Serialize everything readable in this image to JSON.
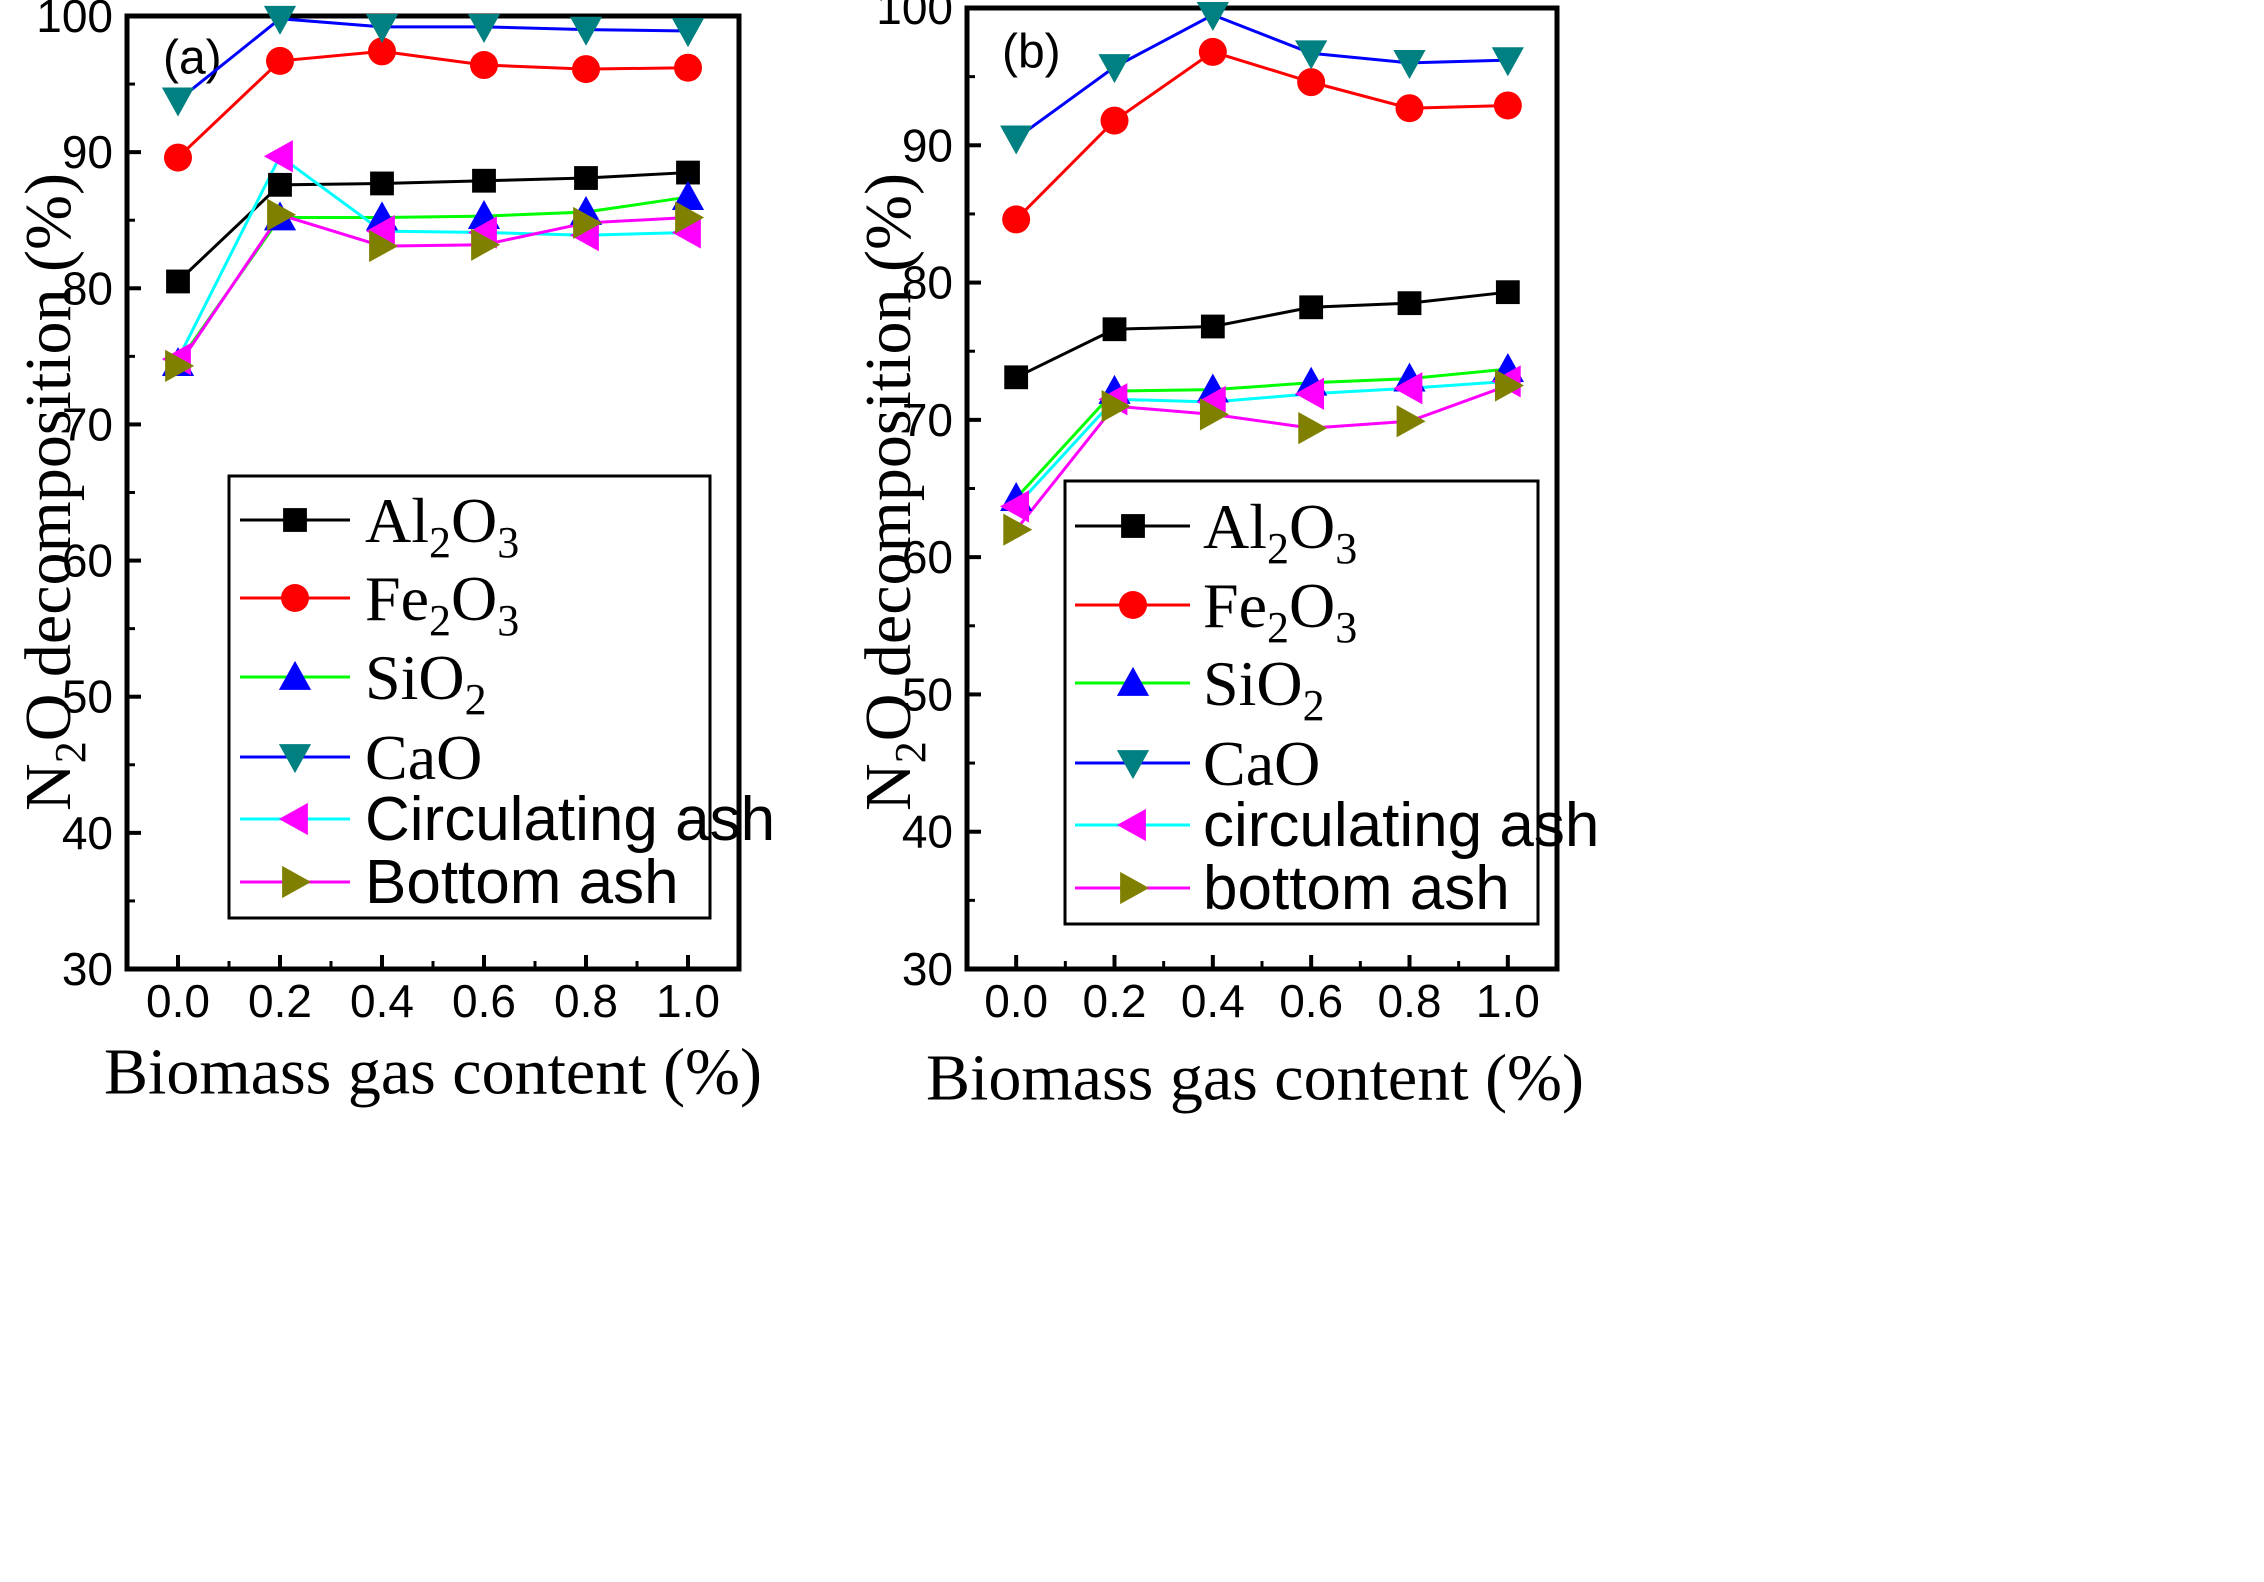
{
  "chart_data": [
    {
      "type": "line",
      "panel_label": "(a)",
      "xlabel": "Biomass gas content (%)",
      "ylabel": {
        "a": "N",
        "sub": "2",
        "b": "O decomposition (%)"
      },
      "xlim": [
        -0.1,
        1.1
      ],
      "ylim": [
        30,
        100
      ],
      "xticks": [
        "0.0",
        "0.2",
        "0.4",
        "0.6",
        "0.8",
        "1.0"
      ],
      "yticks": [
        "30",
        "40",
        "50",
        "60",
        "70",
        "80",
        "90",
        "100"
      ],
      "x": [
        0.0,
        0.2,
        0.4,
        0.6,
        0.8,
        1.0
      ],
      "series": [
        {
          "name": {
            "a": "Al",
            "s1": "2",
            "b": "O",
            "s2": "3"
          },
          "color": "#000000",
          "marker": "square",
          "values": [
            80.5,
            87.6,
            87.7,
            87.9,
            88.1,
            88.5
          ]
        },
        {
          "name": {
            "a": "Fe",
            "s1": "2",
            "b": "O",
            "s2": "3"
          },
          "color": "#ff0000",
          "marker": "circle",
          "values": [
            89.6,
            96.7,
            97.4,
            96.4,
            96.1,
            96.2
          ]
        },
        {
          "name": {
            "a": "SiO",
            "s1": "2",
            "b": "",
            "s2": ""
          },
          "color": "#00ff00",
          "marker": "triangle-up",
          "values": [
            74.5,
            85.2,
            85.2,
            85.3,
            85.6,
            86.7
          ]
        },
        {
          "name": {
            "a": "CaO",
            "s1": "",
            "b": "",
            "s2": ""
          },
          "color": "#0000ff",
          "marker": "triangle-down",
          "values": [
            93.8,
            99.8,
            99.2,
            99.2,
            99.0,
            98.9
          ]
        },
        {
          "name": {
            "a": "Circulating ash",
            "s1": "",
            "b": "",
            "s2": ""
          },
          "color": "#00ffff",
          "marker": "triangle-left",
          "values": [
            74.8,
            89.7,
            84.2,
            84.1,
            83.9,
            84.1
          ]
        },
        {
          "name": {
            "a": "Bottom ash",
            "s1": "",
            "b": "",
            "s2": ""
          },
          "color": "#ff00ff",
          "marker": "triangle-right",
          "values": [
            74.3,
            85.4,
            83.1,
            83.2,
            84.8,
            85.2
          ]
        }
      ]
    },
    {
      "type": "line",
      "panel_label": "(b)",
      "xlabel": "Biomass gas content (%)",
      "ylabel": {
        "a": "N",
        "sub": "2",
        "b": "O decomposition (%)"
      },
      "xlim": [
        -0.1,
        1.1
      ],
      "ylim": [
        30,
        100
      ],
      "xticks": [
        "0.0",
        "0.2",
        "0.4",
        "0.6",
        "0.8",
        "1.0"
      ],
      "yticks": [
        "30",
        "40",
        "50",
        "60",
        "70",
        "80",
        "90",
        "100"
      ],
      "x": [
        0.0,
        0.2,
        0.4,
        0.6,
        0.8,
        1.0
      ],
      "series": [
        {
          "name": {
            "a": "Al",
            "s1": "2",
            "b": "O",
            "s2": "3"
          },
          "color": "#000000",
          "marker": "square",
          "values": [
            73.1,
            76.6,
            76.8,
            78.2,
            78.5,
            79.3
          ]
        },
        {
          "name": {
            "a": "Fe",
            "s1": "2",
            "b": "O",
            "s2": "3"
          },
          "color": "#ff0000",
          "marker": "circle",
          "values": [
            84.6,
            91.8,
            96.8,
            94.6,
            92.7,
            92.9
          ]
        },
        {
          "name": {
            "a": "SiO",
            "s1": "2",
            "b": "",
            "s2": ""
          },
          "color": "#00ff00",
          "marker": "triangle-up",
          "values": [
            64.3,
            72.1,
            72.2,
            72.7,
            73.0,
            73.7
          ]
        },
        {
          "name": {
            "a": "CaO",
            "s1": "",
            "b": "",
            "s2": ""
          },
          "color": "#0000ff",
          "marker": "triangle-down",
          "values": [
            90.5,
            95.7,
            99.5,
            96.7,
            96.0,
            96.2
          ]
        },
        {
          "name": {
            "a": "circulating ash",
            "s1": "",
            "b": "",
            "s2": ""
          },
          "color": "#00ffff",
          "marker": "triangle-left",
          "values": [
            63.7,
            71.5,
            71.3,
            71.9,
            72.3,
            72.8
          ]
        },
        {
          "name": {
            "a": "bottom ash",
            "s1": "",
            "b": "",
            "s2": ""
          },
          "color": "#ff00ff",
          "marker": "triangle-right",
          "values": [
            62.0,
            71.0,
            70.4,
            69.4,
            69.9,
            72.5
          ]
        }
      ]
    }
  ],
  "marker_colors": {
    "square": "#000000",
    "circle": "#ff0000",
    "triangle-up": "#0000ff",
    "triangle-down": "#008080",
    "triangle-left": "#ff00ff",
    "triangle-right": "#808000"
  }
}
